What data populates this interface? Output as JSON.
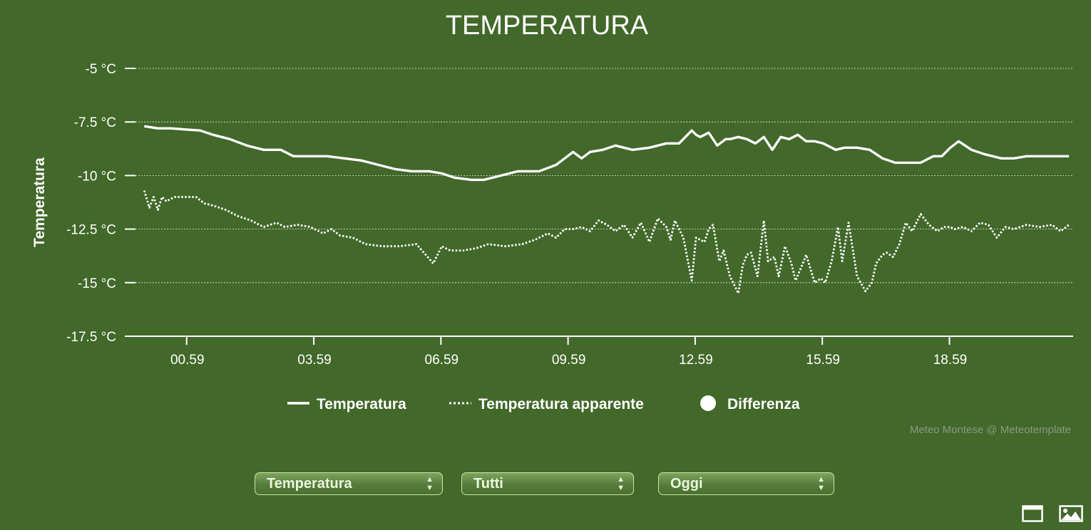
{
  "chart_data": {
    "type": "line",
    "title": "TEMPERATURA",
    "ylabel": "Temperatura",
    "xlabel": "",
    "ylim": [
      -17.5,
      -5
    ],
    "yticks": [
      -5,
      -7.5,
      -10,
      -12.5,
      -15,
      -17.5
    ],
    "ytick_labels": [
      "-5 °C",
      "-7.5 °C",
      "-10 °C",
      "-12.5 °C",
      "-15 °C",
      "-17.5 °C"
    ],
    "x_start_hour": 23.98,
    "x_end_hour": 45.8,
    "xticks": [
      24.98,
      27.98,
      30.98,
      33.98,
      36.98,
      39.98,
      42.98
    ],
    "xtick_labels": [
      "00.59",
      "03.59",
      "06.59",
      "09.59",
      "12.59",
      "15.59",
      "18.59"
    ],
    "grid": true,
    "legend_position": "bottom",
    "credit": "Meteo Montese @ Meteotemplate",
    "series": [
      {
        "name": "Temperatura",
        "style": "solid",
        "color": "#ffffff",
        "x": [
          23.98,
          24.3,
          24.6,
          25.3,
          25.6,
          26.0,
          26.4,
          26.8,
          27.2,
          27.5,
          27.8,
          28.3,
          28.7,
          29.1,
          29.5,
          29.9,
          30.3,
          30.7,
          31.0,
          31.3,
          31.7,
          32.0,
          32.4,
          32.8,
          33.3,
          33.7,
          33.9,
          34.1,
          34.3,
          34.5,
          34.8,
          35.1,
          35.5,
          35.9,
          36.3,
          36.6,
          36.9,
          37.0,
          37.1,
          37.3,
          37.5,
          37.7,
          37.8,
          38.0,
          38.2,
          38.4,
          38.6,
          38.8,
          39.0,
          39.2,
          39.4,
          39.6,
          39.8,
          40.0,
          40.3,
          40.5,
          40.8,
          41.1,
          41.4,
          41.7,
          42.0,
          42.3,
          42.6,
          42.8,
          43.0,
          43.2,
          43.5,
          43.8,
          44.0,
          44.2,
          44.5,
          44.8,
          45.1,
          45.4,
          45.8
        ],
        "values": [
          -7.7,
          -7.8,
          -7.8,
          -7.9,
          -8.1,
          -8.3,
          -8.6,
          -8.8,
          -8.8,
          -9.1,
          -9.1,
          -9.1,
          -9.2,
          -9.3,
          -9.5,
          -9.7,
          -9.8,
          -9.8,
          -9.9,
          -10.1,
          -10.2,
          -10.2,
          -10.0,
          -9.8,
          -9.8,
          -9.5,
          -9.2,
          -8.9,
          -9.2,
          -8.9,
          -8.8,
          -8.6,
          -8.8,
          -8.7,
          -8.5,
          -8.5,
          -7.9,
          -8.1,
          -8.2,
          -8.0,
          -8.6,
          -8.3,
          -8.3,
          -8.2,
          -8.3,
          -8.5,
          -8.2,
          -8.8,
          -8.2,
          -8.3,
          -8.1,
          -8.4,
          -8.4,
          -8.5,
          -8.8,
          -8.7,
          -8.7,
          -8.8,
          -9.2,
          -9.4,
          -9.4,
          -9.4,
          -9.1,
          -9.1,
          -8.7,
          -8.4,
          -8.8,
          -9.0,
          -9.1,
          -9.2,
          -9.2,
          -9.1,
          -9.1,
          -9.1,
          -9.1
        ]
      },
      {
        "name": "Temperatura apparente",
        "style": "dotted",
        "color": "#ffffff",
        "x": [
          23.98,
          24.1,
          24.2,
          24.3,
          24.4,
          24.5,
          24.7,
          24.9,
          25.2,
          25.4,
          25.6,
          25.9,
          26.2,
          26.5,
          26.8,
          27.1,
          27.3,
          27.6,
          27.9,
          28.2,
          28.4,
          28.6,
          28.9,
          29.2,
          29.6,
          30.0,
          30.4,
          30.8,
          31.0,
          31.2,
          31.5,
          31.8,
          32.1,
          32.5,
          32.9,
          33.2,
          33.5,
          33.7,
          33.9,
          34.1,
          34.3,
          34.5,
          34.7,
          34.9,
          35.1,
          35.3,
          35.5,
          35.7,
          35.9,
          36.1,
          36.3,
          36.4,
          36.5,
          36.7,
          36.9,
          37.0,
          37.2,
          37.3,
          37.4,
          37.55,
          37.65,
          37.8,
          38.0,
          38.1,
          38.2,
          38.3,
          38.45,
          38.6,
          38.7,
          38.85,
          38.95,
          39.1,
          39.25,
          39.35,
          39.5,
          39.6,
          39.8,
          39.95,
          40.05,
          40.2,
          40.35,
          40.45,
          40.6,
          40.8,
          41.0,
          41.15,
          41.25,
          41.4,
          41.5,
          41.65,
          41.8,
          41.95,
          42.1,
          42.3,
          42.5,
          42.7,
          42.85,
          43.0,
          43.1,
          43.3,
          43.5,
          43.7,
          43.9,
          44.1,
          44.3,
          44.5,
          44.8,
          45.1,
          45.4,
          45.6,
          45.8
        ],
        "values": [
          -10.7,
          -11.5,
          -11.0,
          -11.6,
          -11.0,
          -11.2,
          -11.0,
          -11.0,
          -11.0,
          -11.3,
          -11.4,
          -11.6,
          -11.9,
          -12.1,
          -12.4,
          -12.2,
          -12.4,
          -12.3,
          -12.4,
          -12.7,
          -12.5,
          -12.8,
          -12.9,
          -13.2,
          -13.3,
          -13.3,
          -13.2,
          -14.1,
          -13.3,
          -13.5,
          -13.5,
          -13.4,
          -13.2,
          -13.3,
          -13.2,
          -13.0,
          -12.7,
          -12.9,
          -12.5,
          -12.5,
          -12.4,
          -12.6,
          -12.1,
          -12.3,
          -12.6,
          -12.3,
          -12.9,
          -12.2,
          -13.1,
          -12.0,
          -12.4,
          -13.0,
          -12.1,
          -12.9,
          -14.9,
          -12.9,
          -13.1,
          -12.5,
          -12.3,
          -14.0,
          -13.5,
          -14.7,
          -15.5,
          -14.2,
          -13.7,
          -13.6,
          -14.7,
          -12.1,
          -14.0,
          -13.8,
          -14.7,
          -13.3,
          -14.1,
          -14.9,
          -14.2,
          -13.7,
          -15.0,
          -14.8,
          -15.0,
          -14.0,
          -12.4,
          -14.0,
          -12.2,
          -14.7,
          -15.4,
          -15.0,
          -14.1,
          -13.7,
          -13.6,
          -13.8,
          -13.2,
          -12.2,
          -12.6,
          -11.8,
          -12.3,
          -12.6,
          -12.4,
          -12.4,
          -12.5,
          -12.4,
          -12.6,
          -12.2,
          -12.3,
          -12.9,
          -12.4,
          -12.5,
          -12.3,
          -12.4,
          -12.3,
          -12.6,
          -12.3
        ]
      },
      {
        "name": "Differenza",
        "style": "marker",
        "color": "#ffffff",
        "values": []
      }
    ]
  },
  "controls": {
    "variable_select": "Temperatura",
    "filter_select": "Tutti",
    "period_select": "Oggi"
  },
  "icons": {
    "fullscreen": "window-icon",
    "export": "image-icon"
  }
}
